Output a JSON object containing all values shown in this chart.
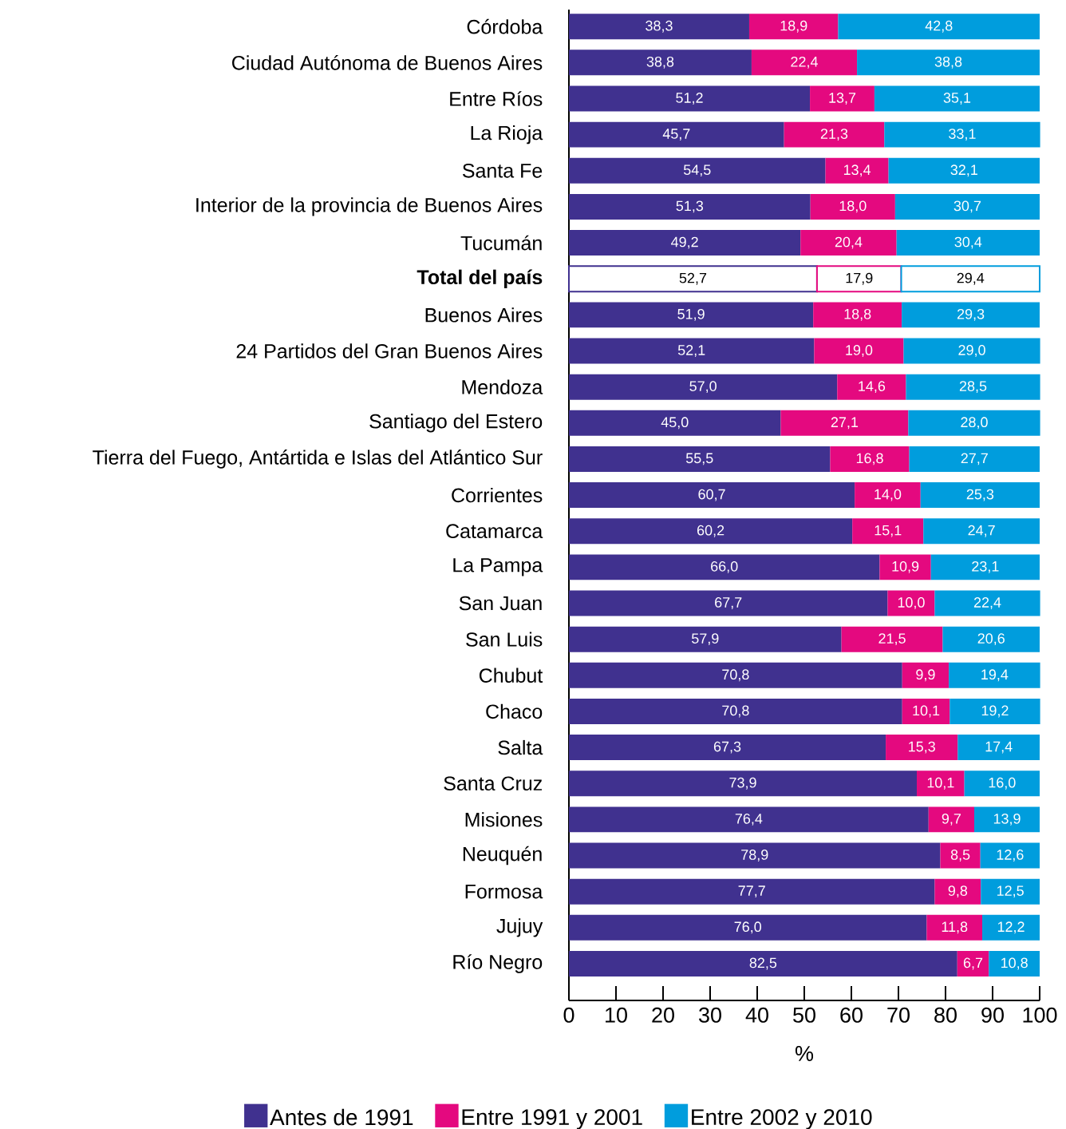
{
  "chart_data": {
    "type": "bar",
    "orientation": "horizontal",
    "stacked": true,
    "xlabel": "%",
    "legend": "bottom",
    "categories": [
      "Córdoba",
      "Ciudad Autónoma de Buenos Aires",
      "Entre Ríos",
      "La Rioja",
      "Santa Fe",
      "Interior de la provincia de Buenos Aires",
      "Tucumán",
      "**Total del país**",
      "Buenos Aires",
      "24 Partidos del Gran Buenos Aires",
      "Mendoza",
      "Santiago del Estero",
      "Tierra del Fuego, Antártida e Islas del Atlántico Sur",
      "Corrientes",
      "Catamarca",
      "La Pampa",
      "San Juan",
      "San Luis",
      "Chubut",
      "Chaco",
      "Salta",
      "Santa Cruz",
      "Misiones",
      "Neuquén",
      "Formosa",
      "Jujuy",
      "Río Negro"
    ],
    "xlim": [
      0,
      100
    ],
    "xticks": [
      0,
      10,
      20,
      30,
      40,
      50,
      60,
      70,
      80,
      90,
      100
    ],
    "series": [
      {
        "name": "Antes de 1991",
        "color": "#40318f",
        "colors": [
          "#40318f",
          "#40318f",
          "#40318f",
          "#40318f",
          "#40318f",
          "#40318f",
          "#40318f",
          "#ffffff",
          "#40318f",
          "#40318f",
          "#40318f",
          "#40318f",
          "#40318f",
          "#40318f",
          "#40318f",
          "#40318f",
          "#40318f",
          "#40318f",
          "#40318f",
          "#40318f",
          "#40318f",
          "#40318f",
          "#40318f",
          "#40318f",
          "#40318f",
          "#40318f",
          "#40318f"
        ],
        "values": [
          38.3,
          38.8,
          51.2,
          45.7,
          54.5,
          51.3,
          49.2,
          52.7,
          51.9,
          52.1,
          57.0,
          45.0,
          55.5,
          60.7,
          60.2,
          66.0,
          67.7,
          57.9,
          70.8,
          70.8,
          67.3,
          73.9,
          76.4,
          78.9,
          77.7,
          76.0,
          82.5
        ],
        "value_labels": [
          "38,3",
          "38,8",
          "51,2",
          "45,7",
          "54,5",
          "51,3",
          "49,2",
          "52,7",
          "51,9",
          "52,1",
          "57,0",
          "45,0",
          "55,5",
          "60,7",
          "60,2",
          "66,0",
          "67,7",
          "57,9",
          "70,8",
          "70,8",
          "67,3",
          "73,9",
          "76,4",
          "78,9",
          "77,7",
          "76,0",
          "82,5"
        ]
      },
      {
        "name": "Entre 1991 y 2001",
        "color": "#e4097f",
        "colors": [
          "#e4097f",
          "#e4097f",
          "#e4097f",
          "#e4097f",
          "#e4097f",
          "#e4097f",
          "#e4097f",
          "#ffffff",
          "#e4097f",
          "#e4097f",
          "#e4097f",
          "#e4097f",
          "#e4097f",
          "#e4097f",
          "#e4097f",
          "#e4097f",
          "#e4097f",
          "#e4097f",
          "#e4097f",
          "#e4097f",
          "#e4097f",
          "#e4097f",
          "#e4097f",
          "#e4097f",
          "#e4097f",
          "#e4097f",
          "#e4097f"
        ],
        "values": [
          18.9,
          22.4,
          13.7,
          21.3,
          13.4,
          18.0,
          20.4,
          17.9,
          18.8,
          19.0,
          14.6,
          27.1,
          16.8,
          14.0,
          15.1,
          10.9,
          10.0,
          21.5,
          9.9,
          10.1,
          15.3,
          10.1,
          9.7,
          8.5,
          9.8,
          11.8,
          6.7
        ],
        "value_labels": [
          "18,9",
          "22,4",
          "13,7",
          "21,3",
          "13,4",
          "18,0",
          "20,4",
          "17,9",
          "18,8",
          "19,0",
          "14,6",
          "27,1",
          "16,8",
          "14,0",
          "15,1",
          "10,9",
          "10,0",
          "21,5",
          "9,9",
          "10,1",
          "15,3",
          "10,1",
          "9,7",
          "8,5",
          "9,8",
          "11,8",
          "6,7"
        ]
      },
      {
        "name": "Entre 2002 y 2010",
        "color": "#009ddd",
        "colors": [
          "#009ddd",
          "#009ddd",
          "#009ddd",
          "#009ddd",
          "#009ddd",
          "#009ddd",
          "#009ddd",
          "#ffffff",
          "#009ddd",
          "#009ddd",
          "#009ddd",
          "#009ddd",
          "#009ddd",
          "#009ddd",
          "#009ddd",
          "#009ddd",
          "#009ddd",
          "#009ddd",
          "#009ddd",
          "#009ddd",
          "#009ddd",
          "#009ddd",
          "#009ddd",
          "#009ddd",
          "#009ddd",
          "#009ddd",
          "#009ddd"
        ],
        "values": [
          42.8,
          38.8,
          35.1,
          33.1,
          32.1,
          30.7,
          30.4,
          29.4,
          29.3,
          29.0,
          28.5,
          28.0,
          27.7,
          25.3,
          24.7,
          23.1,
          22.4,
          20.6,
          19.4,
          19.2,
          17.4,
          16.0,
          13.9,
          12.6,
          12.5,
          12.2,
          10.8
        ],
        "value_labels": [
          "42,8",
          "38,8",
          "35,1",
          "33,1",
          "32,1",
          "30,7",
          "30,4",
          "29,4",
          "29,3",
          "29,0",
          "28,5",
          "28,0",
          "27,7",
          "25,3",
          "24,7",
          "23,1",
          "22,4",
          "20,6",
          "19,4",
          "19,2",
          "17,4",
          "16,0",
          "13,9",
          "12,6",
          "12,5",
          "12,2",
          "10,8"
        ]
      }
    ]
  }
}
